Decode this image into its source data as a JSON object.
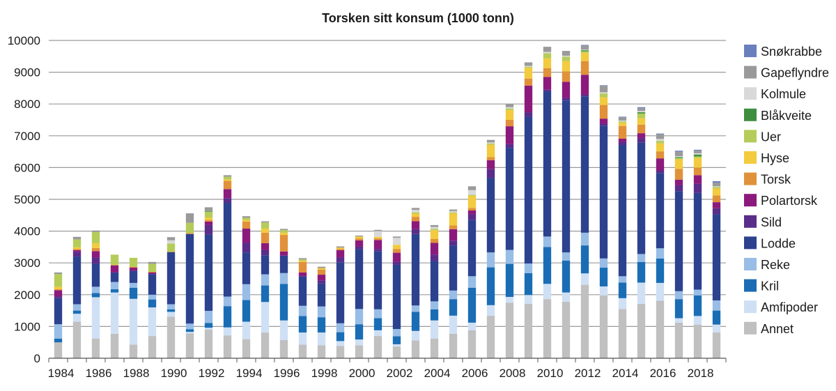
{
  "chart_data": {
    "type": "bar",
    "stacked": true,
    "title": "Torsken sitt konsum (1000 tonn)",
    "xlabel": "",
    "ylabel": "",
    "ylim": [
      0,
      10000
    ],
    "yticks": [
      0,
      1000,
      2000,
      3000,
      4000,
      5000,
      6000,
      7000,
      8000,
      9000,
      10000
    ],
    "xtick_labels": [
      "1984",
      "1986",
      "1988",
      "1990",
      "1992",
      "1994",
      "1996",
      "1998",
      "2000",
      "2002",
      "2004",
      "2006",
      "2008",
      "2010",
      "2012",
      "2014",
      "2016",
      "2018"
    ],
    "grid": true,
    "legend_position": "right",
    "categories": [
      "1984",
      "1985",
      "1986",
      "1987",
      "1988",
      "1989",
      "1990",
      "1991",
      "1992",
      "1993",
      "1994",
      "1995",
      "1996",
      "1997",
      "1998",
      "1999",
      "2000",
      "2001",
      "2002",
      "2003",
      "2004",
      "2005",
      "2006",
      "2007",
      "2008",
      "2009",
      "2010",
      "2011",
      "2012",
      "2013",
      "2014",
      "2015",
      "2016",
      "2017",
      "2018",
      "2019"
    ],
    "series": [
      {
        "name": "Annet",
        "color": "#c0c0c0",
        "values": [
          500,
          1150,
          620,
          770,
          430,
          700,
          1310,
          780,
          900,
          720,
          600,
          810,
          570,
          430,
          410,
          390,
          410,
          700,
          370,
          560,
          620,
          770,
          880,
          1340,
          1750,
          1710,
          1860,
          1780,
          2310,
          1980,
          1550,
          1710,
          1810,
          1120,
          1060,
          810
        ]
      },
      {
        "name": "Amfipoder",
        "color": "#cfe0f5",
        "values": [
          0,
          250,
          1300,
          1300,
          1440,
          900,
          150,
          50,
          60,
          250,
          550,
          960,
          620,
          380,
          400,
          150,
          180,
          180,
          70,
          300,
          570,
          570,
          240,
          330,
          180,
          280,
          480,
          290,
          360,
          280,
          340,
          670,
          560,
          140,
          270,
          250
        ]
      },
      {
        "name": "Kril",
        "color": "#1a6db5",
        "values": [
          120,
          100,
          130,
          100,
          350,
          250,
          80,
          80,
          150,
          670,
          680,
          520,
          1150,
          520,
          480,
          280,
          480,
          380,
          250,
          600,
          350,
          520,
          1100,
          1190,
          1040,
          690,
          1160,
          1000,
          880,
          590,
          490,
          650,
          770,
          600,
          650,
          440
        ]
      },
      {
        "name": "Reke",
        "color": "#98bde6",
        "values": [
          450,
          200,
          200,
          230,
          150,
          150,
          160,
          180,
          380,
          300,
          500,
          350,
          340,
          320,
          340,
          280,
          480,
          280,
          230,
          200,
          250,
          270,
          360,
          470,
          440,
          300,
          330,
          260,
          400,
          290,
          200,
          250,
          320,
          250,
          180,
          320
        ]
      },
      {
        "name": "Lodde",
        "color": "#2c428f",
        "values": [
          820,
          1500,
          720,
          300,
          380,
          650,
          1640,
          2820,
          2400,
          2950,
          1000,
          600,
          550,
          930,
          720,
          1920,
          1880,
          1820,
          2020,
          2250,
          1270,
          1420,
          1770,
          2340,
          3210,
          4620,
          4570,
          4780,
          4290,
          4180,
          4130,
          3500,
          2370,
          3150,
          3040,
          2710
        ]
      },
      {
        "name": "Sild",
        "color": "#5a2d8a",
        "values": [
          50,
          150,
          200,
          0,
          0,
          0,
          0,
          0,
          300,
          150,
          300,
          160,
          0,
          0,
          100,
          150,
          80,
          80,
          100,
          150,
          200,
          150,
          180,
          280,
          120,
          140,
          50,
          90,
          50,
          60,
          100,
          140,
          80,
          180,
          290,
          190
        ]
      },
      {
        "name": "Polartorsk",
        "color": "#8b1a7c",
        "values": [
          200,
          50,
          200,
          220,
          100,
          50,
          0,
          0,
          110,
          280,
          450,
          220,
          130,
          120,
          180,
          230,
          200,
          280,
          280,
          250,
          370,
          360,
          120,
          280,
          560,
          840,
          400,
          500,
          630,
          160,
          100,
          160,
          380,
          180,
          270,
          190
        ]
      },
      {
        "name": "Torsk",
        "color": "#e0913a",
        "values": [
          30,
          40,
          100,
          20,
          30,
          20,
          20,
          30,
          50,
          260,
          220,
          330,
          520,
          330,
          160,
          40,
          60,
          50,
          120,
          140,
          120,
          120,
          80,
          100,
          200,
          220,
          280,
          330,
          430,
          430,
          400,
          270,
          220,
          340,
          240,
          210
        ]
      },
      {
        "name": "Hyse",
        "color": "#f2cb3f",
        "values": [
          80,
          50,
          150,
          0,
          0,
          0,
          0,
          0,
          80,
          50,
          50,
          130,
          70,
          40,
          50,
          40,
          60,
          50,
          130,
          100,
          280,
          380,
          380,
          390,
          310,
          340,
          310,
          320,
          260,
          240,
          100,
          200,
          250,
          300,
          300,
          220
        ]
      },
      {
        "name": "Uer",
        "color": "#b5cc5a",
        "values": [
          400,
          250,
          350,
          320,
          280,
          250,
          250,
          320,
          180,
          80,
          70,
          190,
          80,
          40,
          0,
          0,
          0,
          0,
          0,
          40,
          40,
          30,
          30,
          40,
          50,
          30,
          160,
          140,
          50,
          120,
          40,
          150,
          80,
          40,
          50,
          50
        ]
      },
      {
        "name": "Blåkveite",
        "color": "#3e8e3e",
        "values": [
          0,
          0,
          0,
          0,
          0,
          0,
          0,
          0,
          20,
          0,
          0,
          0,
          0,
          0,
          0,
          0,
          0,
          0,
          0,
          0,
          0,
          0,
          0,
          0,
          0,
          0,
          0,
          0,
          30,
          0,
          0,
          40,
          0,
          30,
          60,
          0
        ]
      },
      {
        "name": "Kolmule",
        "color": "#d9d9d9",
        "values": [
          0,
          0,
          0,
          0,
          0,
          0,
          100,
          0,
          0,
          0,
          0,
          0,
          0,
          0,
          0,
          0,
          0,
          180,
          220,
          80,
          60,
          40,
          150,
          30,
          40,
          30,
          40,
          30,
          20,
          40,
          30,
          40,
          60,
          30,
          40,
          20
        ]
      },
      {
        "name": "Gapeflyndre",
        "color": "#9a9a9a",
        "values": [
          50,
          80,
          50,
          0,
          0,
          60,
          100,
          300,
          120,
          50,
          50,
          40,
          40,
          40,
          40,
          40,
          30,
          40,
          40,
          60,
          60,
          50,
          120,
          80,
          100,
          110,
          160,
          150,
          130,
          200,
          100,
          90,
          150,
          140,
          80,
          110
        ]
      },
      {
        "name": "Snøkrabbe",
        "color": "#6a7fbd",
        "values": [
          0,
          0,
          0,
          0,
          0,
          0,
          0,
          0,
          0,
          0,
          0,
          0,
          0,
          0,
          0,
          0,
          0,
          0,
          0,
          0,
          0,
          0,
          0,
          0,
          0,
          0,
          0,
          0,
          20,
          20,
          20,
          30,
          20,
          30,
          30,
          50
        ]
      }
    ]
  }
}
